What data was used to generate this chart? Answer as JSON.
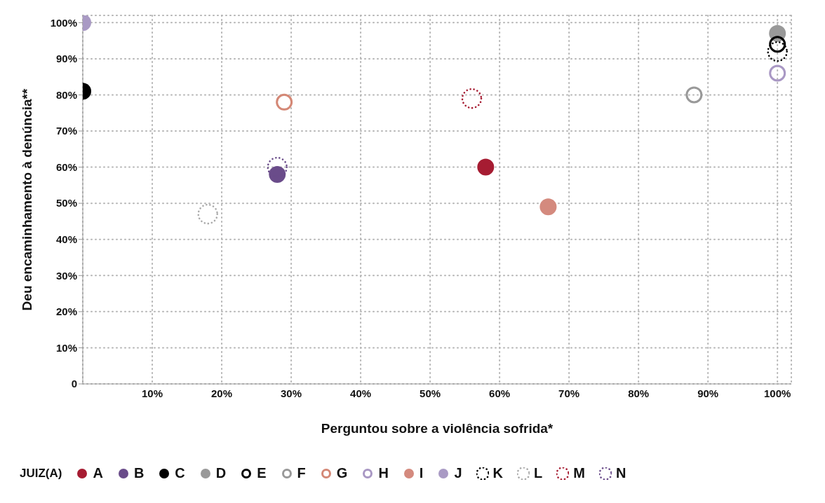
{
  "chart_data": {
    "type": "scatter",
    "xlabel": "Perguntou sobre a violência sofrida*",
    "ylabel": "Deu encaminhamento à denúncia**",
    "legend_title": "JUIZ(A)",
    "legend": "bottom",
    "grid": true,
    "marker": "circle",
    "xlim": [
      0,
      102
    ],
    "ylim": [
      0,
      102
    ],
    "xticks": [
      {
        "value": 10,
        "label": "10%"
      },
      {
        "value": 20,
        "label": "20%"
      },
      {
        "value": 30,
        "label": "30%"
      },
      {
        "value": 40,
        "label": "40%"
      },
      {
        "value": 50,
        "label": "50%"
      },
      {
        "value": 60,
        "label": "60%"
      },
      {
        "value": 70,
        "label": "70%"
      },
      {
        "value": 80,
        "label": "80%"
      },
      {
        "value": 90,
        "label": "90%"
      },
      {
        "value": 100,
        "label": "100%"
      }
    ],
    "yticks": [
      0,
      {
        "value": 10,
        "label": "10%"
      },
      {
        "value": 20,
        "label": "20%"
      },
      {
        "value": 30,
        "label": "30%"
      },
      {
        "value": 40,
        "label": "40%"
      },
      {
        "value": 50,
        "label": "50%"
      },
      {
        "value": 60,
        "label": "60%"
      },
      {
        "value": 70,
        "label": "70%"
      },
      {
        "value": 80,
        "label": "80%"
      },
      {
        "value": 90,
        "label": "90%"
      },
      {
        "value": 100,
        "label": "100%"
      }
    ],
    "series": [
      {
        "name": "A",
        "color": "#a61c32",
        "x": [
          58
        ],
        "values": [
          60
        ]
      },
      {
        "name": "B",
        "color": "#6a4c8a",
        "x": [
          28
        ],
        "values": [
          58
        ]
      },
      {
        "name": "C",
        "color": "#000000",
        "x": [
          0
        ],
        "values": [
          81
        ]
      },
      {
        "name": "D",
        "color": "#999999",
        "x": [
          100
        ],
        "values": [
          97
        ]
      },
      {
        "name": "E",
        "color": "#000000",
        "line_style": "solid",
        "x": [
          100
        ],
        "values": [
          94
        ]
      },
      {
        "name": "F",
        "color": "#999999",
        "line_style": "solid",
        "x": [
          88
        ],
        "values": [
          80
        ]
      },
      {
        "name": "G",
        "color": "#d48876",
        "line_style": "solid",
        "x": [
          29
        ],
        "values": [
          78
        ]
      },
      {
        "name": "H",
        "color": "#a998c4",
        "line_style": "solid",
        "x": [
          100
        ],
        "values": [
          86
        ]
      },
      {
        "name": "I",
        "color": "#d48a7e",
        "x": [
          67
        ],
        "values": [
          49
        ]
      },
      {
        "name": "J",
        "color": "#a99ac4",
        "x": [
          0
        ],
        "values": [
          100
        ]
      },
      {
        "name": "K",
        "color": "#000000",
        "line_style": "dotted",
        "x": [
          100
        ],
        "values": [
          92
        ]
      },
      {
        "name": "L",
        "color": "#aaaaaa",
        "line_style": "dotted",
        "x": [
          18
        ],
        "values": [
          47
        ]
      },
      {
        "name": "M",
        "color": "#a61c32",
        "line_style": "dotted",
        "x": [
          56
        ],
        "values": [
          79
        ]
      },
      {
        "name": "N",
        "color": "#6a4c8a",
        "line_style": "dotted",
        "x": [
          28
        ],
        "values": [
          60
        ]
      }
    ]
  }
}
